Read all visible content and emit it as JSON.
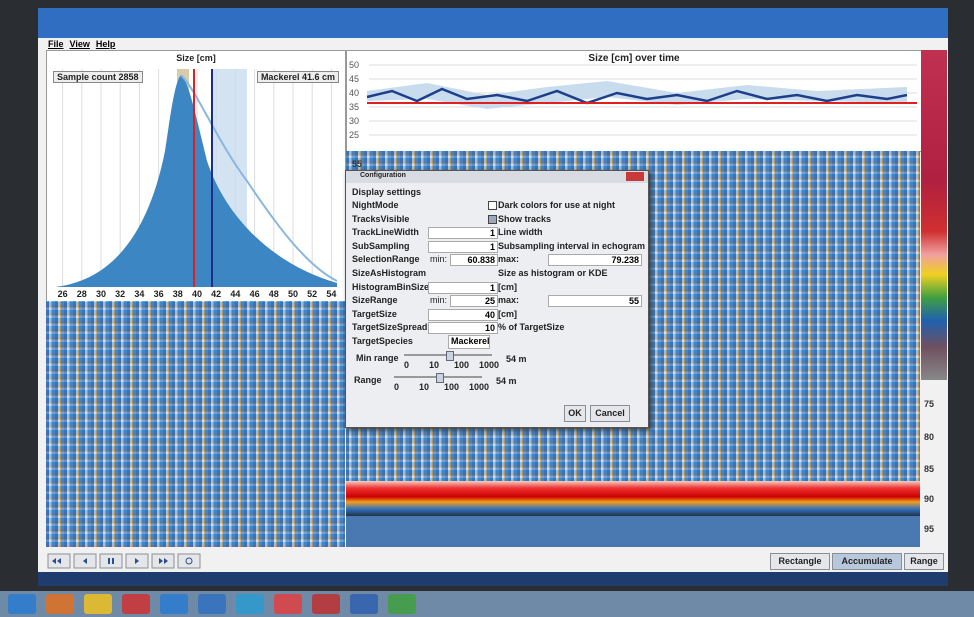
{
  "menu": [
    "File",
    "View",
    "Help"
  ],
  "histogram": {
    "title": "Size [cm]",
    "sample_count": "Sample count 2858",
    "species_label": "Mackerel 41.6 cm",
    "x_ticks": [
      "26",
      "28",
      "30",
      "32",
      "34",
      "36",
      "38",
      "40",
      "42",
      "44",
      "46",
      "48",
      "50",
      "52",
      "54"
    ]
  },
  "time_chart": {
    "title": "Size [cm] over time",
    "y_ticks": [
      "50",
      "45",
      "40",
      "35",
      "30",
      "25"
    ]
  },
  "echogram": {
    "depth_ticks": [
      "55",
      "75",
      "80",
      "85",
      "90",
      "95"
    ]
  },
  "dialog": {
    "title": "Configuration",
    "section": "Display settings",
    "rows": [
      {
        "name": "NightMode",
        "checked": false,
        "description": "Dark colors for use at night"
      },
      {
        "name": "TracksVisible",
        "checked": true,
        "description": "Show tracks"
      },
      {
        "name": "TrackLineWidth",
        "value": "1",
        "description": "Line width"
      },
      {
        "name": "SubSampling",
        "value": "1",
        "description": "Subsampling interval in echogram"
      },
      {
        "name": "SelectionRange",
        "min_label": "min:",
        "value": "60.838",
        "max_label": "max:",
        "max": "79.238"
      },
      {
        "name": "SizeAsHistogram",
        "description": "Size as histogram or KDE"
      },
      {
        "name": "HistogramBinSize",
        "value": "1",
        "description": "[cm]"
      },
      {
        "name": "SizeRange",
        "min_label": "min:",
        "value": "25",
        "max_label": "max:",
        "max": "55"
      },
      {
        "name": "TargetSize",
        "value": "40",
        "description": "[cm]"
      },
      {
        "name": "TargetSizeSpread",
        "value": "10",
        "description": "% of TargetSize"
      },
      {
        "name": "TargetSpecies",
        "dropdown": "Mackerel"
      }
    ],
    "sliders": [
      {
        "label": "Min range",
        "ticks": [
          "0",
          "10",
          "100",
          "1000"
        ],
        "readout": "54 m"
      },
      {
        "label": "Range",
        "ticks": [
          "0",
          "10",
          "100",
          "1000"
        ],
        "readout": "54 m"
      }
    ],
    "buttons": [
      "OK",
      "Cancel"
    ]
  },
  "toolbar": {
    "buttons": [
      "Rectangle",
      "Accumulate",
      "Range"
    ]
  }
}
